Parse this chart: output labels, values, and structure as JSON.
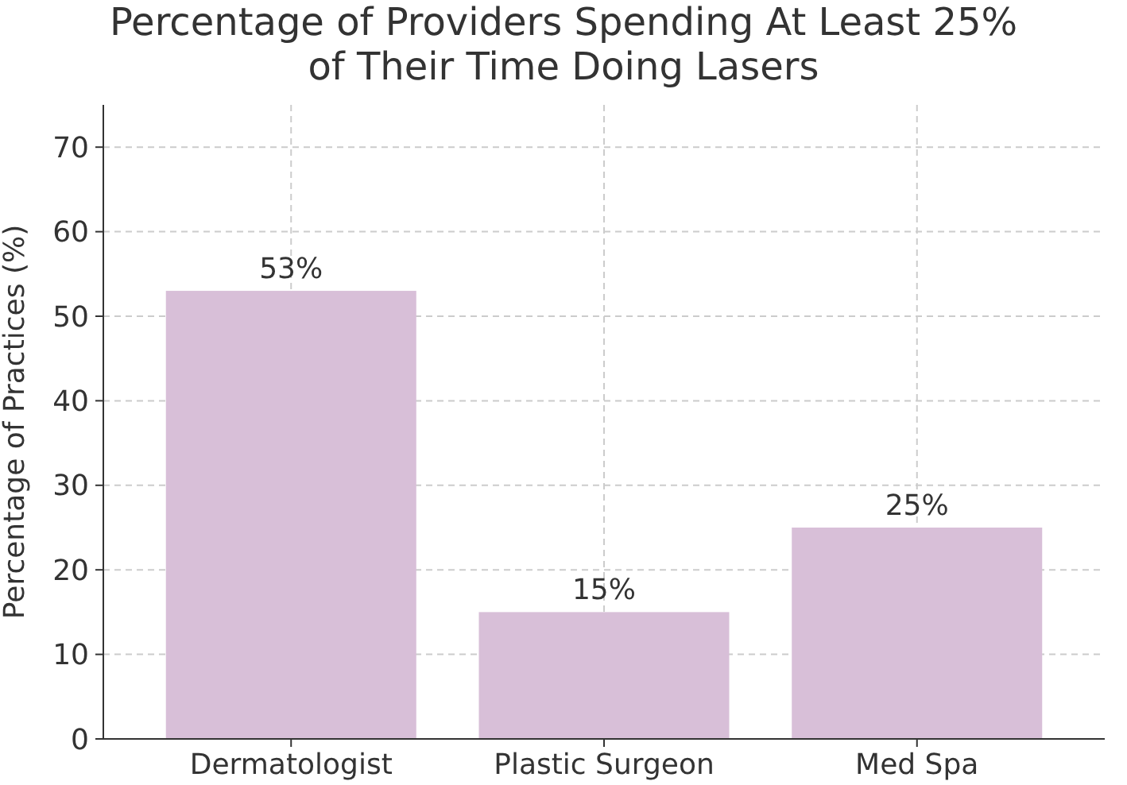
{
  "chart_data": {
    "type": "bar",
    "title": "Percentage of Providers Spending At Least 25%\nof Their Time Doing Lasers",
    "ylabel": "Percentage of Practices (%)",
    "categories": [
      "Dermatologist",
      "Plastic Surgeon",
      "Med Spa"
    ],
    "values": [
      53,
      15,
      25
    ],
    "value_labels": [
      "53%",
      "15%",
      "25%"
    ],
    "color": "#d8bfd8",
    "ylim": [
      0,
      75
    ],
    "yticks": [
      0,
      10,
      20,
      30,
      40,
      50,
      60,
      70
    ],
    "grid": true
  }
}
